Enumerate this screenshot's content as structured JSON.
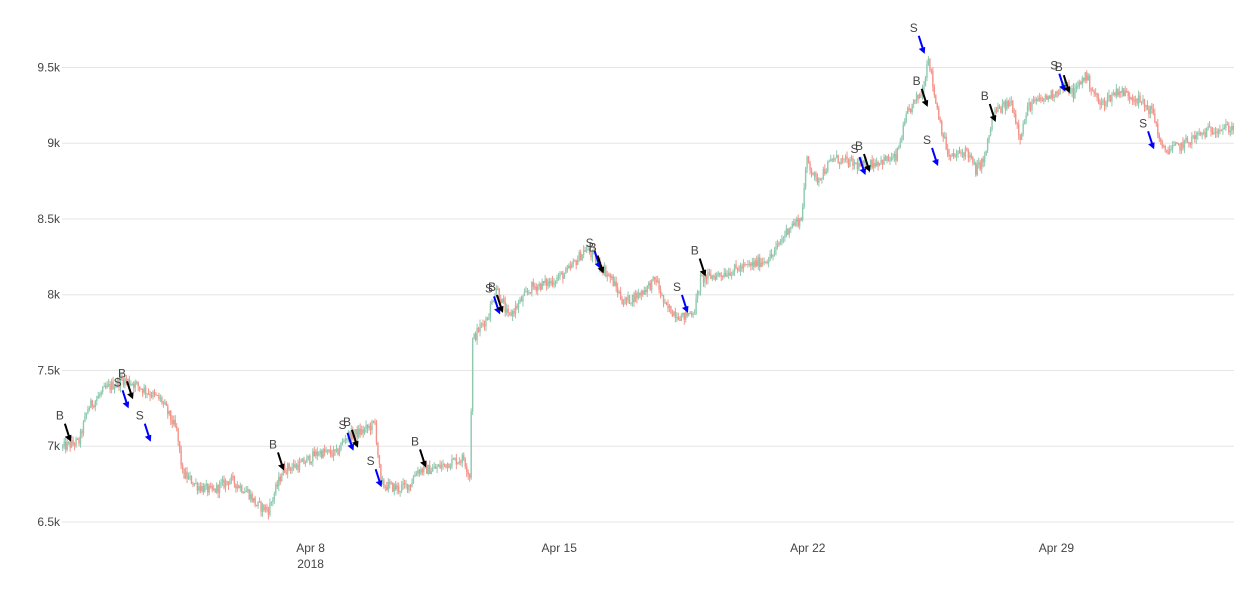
{
  "chart_data": {
    "type": "candlestick",
    "x_axis": {
      "range": [
        "2018-04-01",
        "2018-05-04"
      ],
      "ticks": [
        {
          "date": "2018-04-08",
          "label": "Apr 8",
          "sublabel": "2018"
        },
        {
          "date": "2018-04-15",
          "label": "Apr 15"
        },
        {
          "date": "2018-04-22",
          "label": "Apr 22"
        },
        {
          "date": "2018-04-29",
          "label": "Apr 29"
        }
      ]
    },
    "y_axis": {
      "range": [
        6500,
        9800
      ],
      "ticks": [
        {
          "value": 6500,
          "label": "6.5k"
        },
        {
          "value": 7000,
          "label": "7k"
        },
        {
          "value": 7500,
          "label": "7.5k"
        },
        {
          "value": 8000,
          "label": "8k"
        },
        {
          "value": 8500,
          "label": "8.5k"
        },
        {
          "value": 9000,
          "label": "9k"
        },
        {
          "value": 9500,
          "label": "9.5k"
        }
      ]
    },
    "grid": true,
    "colors": {
      "increasing": "#8fcab0",
      "decreasing": "#f3948a",
      "buy": "#000000",
      "sell": "#0000ff",
      "grid": "#e6e6e6",
      "tick_text": "#444444"
    },
    "price_path": [
      [
        "2018-04-01 00:00",
        6990
      ],
      [
        "2018-04-01 12:00",
        7030
      ],
      [
        "2018-04-01 18:00",
        7250
      ],
      [
        "2018-04-02 06:00",
        7380
      ],
      [
        "2018-04-02 18:00",
        7440
      ],
      [
        "2018-04-03 00:00",
        7420
      ],
      [
        "2018-04-03 12:00",
        7350
      ],
      [
        "2018-04-03 20:00",
        7300
      ],
      [
        "2018-04-04 06:00",
        7100
      ],
      [
        "2018-04-04 10:00",
        6820
      ],
      [
        "2018-04-04 20:00",
        6740
      ],
      [
        "2018-04-05 06:00",
        6700
      ],
      [
        "2018-04-05 18:00",
        6780
      ],
      [
        "2018-04-06 06:00",
        6700
      ],
      [
        "2018-04-06 12:00",
        6610
      ],
      [
        "2018-04-06 20:00",
        6580
      ],
      [
        "2018-04-07 06:00",
        6850
      ],
      [
        "2018-04-07 18:00",
        6880
      ],
      [
        "2018-04-08 06:00",
        6960
      ],
      [
        "2018-04-08 18:00",
        6950
      ],
      [
        "2018-04-09 00:00",
        7060
      ],
      [
        "2018-04-09 12:00",
        7100
      ],
      [
        "2018-04-09 20:00",
        7150
      ],
      [
        "2018-04-10 00:00",
        6750
      ],
      [
        "2018-04-10 12:00",
        6720
      ],
      [
        "2018-04-10 20:00",
        6750
      ],
      [
        "2018-04-11 00:00",
        6840
      ],
      [
        "2018-04-11 12:00",
        6850
      ],
      [
        "2018-04-12 00:00",
        6900
      ],
      [
        "2018-04-12 08:00",
        6920
      ],
      [
        "2018-04-12 12:00",
        6800
      ],
      [
        "2018-04-12 14:00",
        7700
      ],
      [
        "2018-04-12 20:00",
        7800
      ],
      [
        "2018-04-13 00:00",
        7850
      ],
      [
        "2018-04-13 06:00",
        8050
      ],
      [
        "2018-04-13 14:00",
        7850
      ],
      [
        "2018-04-13 22:00",
        7950
      ],
      [
        "2018-04-14 06:00",
        8050
      ],
      [
        "2018-04-14 18:00",
        8080
      ],
      [
        "2018-04-15 06:00",
        8150
      ],
      [
        "2018-04-15 18:00",
        8300
      ],
      [
        "2018-04-16 00:00",
        8250
      ],
      [
        "2018-04-16 12:00",
        8100
      ],
      [
        "2018-04-16 20:00",
        7950
      ],
      [
        "2018-04-17 06:00",
        8000
      ],
      [
        "2018-04-17 18:00",
        8100
      ],
      [
        "2018-04-18 00:00",
        7920
      ],
      [
        "2018-04-18 12:00",
        7850
      ],
      [
        "2018-04-18 20:00",
        7900
      ],
      [
        "2018-04-19 00:00",
        8100
      ],
      [
        "2018-04-19 18:00",
        8150
      ],
      [
        "2018-04-20 12:00",
        8200
      ],
      [
        "2018-04-21 00:00",
        8250
      ],
      [
        "2018-04-21 12:00",
        8450
      ],
      [
        "2018-04-21 20:00",
        8500
      ],
      [
        "2018-04-22 00:00",
        8900
      ],
      [
        "2018-04-22 06:00",
        8750
      ],
      [
        "2018-04-22 18:00",
        8900
      ],
      [
        "2018-04-23 12:00",
        8850
      ],
      [
        "2018-04-24 00:00",
        8880
      ],
      [
        "2018-04-24 12:00",
        8900
      ],
      [
        "2018-04-24 20:00",
        9200
      ],
      [
        "2018-04-25 06:00",
        9350
      ],
      [
        "2018-04-25 10:00",
        9580
      ],
      [
        "2018-04-25 14:00",
        9320
      ],
      [
        "2018-04-25 20:00",
        9050
      ],
      [
        "2018-04-26 00:00",
        8900
      ],
      [
        "2018-04-26 12:00",
        8950
      ],
      [
        "2018-04-26 18:00",
        8820
      ],
      [
        "2018-04-27 00:00",
        8900
      ],
      [
        "2018-04-27 06:00",
        9200
      ],
      [
        "2018-04-27 18:00",
        9270
      ],
      [
        "2018-04-28 00:00",
        9050
      ],
      [
        "2018-04-28 06:00",
        9250
      ],
      [
        "2018-04-28 18:00",
        9300
      ],
      [
        "2018-04-29 06:00",
        9380
      ],
      [
        "2018-04-29 12:00",
        9330
      ],
      [
        "2018-04-29 20:00",
        9450
      ],
      [
        "2018-04-30 06:00",
        9250
      ],
      [
        "2018-04-30 18:00",
        9350
      ],
      [
        "2018-05-01 06:00",
        9300
      ],
      [
        "2018-05-01 18:00",
        9200
      ],
      [
        "2018-05-02 00:00",
        8950
      ],
      [
        "2018-05-02 12:00",
        8980
      ],
      [
        "2018-05-03 00:00",
        9050
      ],
      [
        "2018-05-03 12:00",
        9100
      ],
      [
        "2018-05-04 00:00",
        9100
      ]
    ],
    "trade_markers": [
      {
        "label": "B",
        "side": "buy",
        "date": "2018-04-01 06:00",
        "price": 7030
      },
      {
        "label": "S",
        "side": "sell",
        "date": "2018-04-02 21:00",
        "price": 7250
      },
      {
        "label": "B",
        "side": "buy",
        "date": "2018-04-03 00:00",
        "price": 7310
      },
      {
        "label": "S",
        "side": "sell",
        "date": "2018-04-03 12:00",
        "price": 7030
      },
      {
        "label": "B",
        "side": "buy",
        "date": "2018-04-07 06:00",
        "price": 6840
      },
      {
        "label": "S",
        "side": "sell",
        "date": "2018-04-09 05:00",
        "price": 6970
      },
      {
        "label": "B",
        "side": "buy",
        "date": "2018-04-09 08:00",
        "price": 6990
      },
      {
        "label": "S",
        "side": "sell",
        "date": "2018-04-10 00:00",
        "price": 6730
      },
      {
        "label": "B",
        "side": "buy",
        "date": "2018-04-11 06:00",
        "price": 6860
      },
      {
        "label": "S",
        "side": "sell",
        "date": "2018-04-13 08:00",
        "price": 7870
      },
      {
        "label": "B",
        "side": "buy",
        "date": "2018-04-13 10:00",
        "price": 7880
      },
      {
        "label": "S",
        "side": "sell",
        "date": "2018-04-16 04:00",
        "price": 8170
      },
      {
        "label": "B",
        "side": "buy",
        "date": "2018-04-16 06:00",
        "price": 8140
      },
      {
        "label": "S",
        "side": "sell",
        "date": "2018-04-18 15:00",
        "price": 7880
      },
      {
        "label": "B",
        "side": "buy",
        "date": "2018-04-19 03:00",
        "price": 8120
      },
      {
        "label": "S",
        "side": "sell",
        "date": "2018-04-23 15:00",
        "price": 8790
      },
      {
        "label": "B",
        "side": "buy",
        "date": "2018-04-23 18:00",
        "price": 8810
      },
      {
        "label": "S",
        "side": "sell",
        "date": "2018-04-25 07:00",
        "price": 9590
      },
      {
        "label": "B",
        "side": "buy",
        "date": "2018-04-25 09:00",
        "price": 9240
      },
      {
        "label": "S",
        "side": "sell",
        "date": "2018-04-25 16:00",
        "price": 8850
      },
      {
        "label": "B",
        "side": "buy",
        "date": "2018-04-27 07:00",
        "price": 9140
      },
      {
        "label": "S",
        "side": "sell",
        "date": "2018-04-29 06:00",
        "price": 9340
      },
      {
        "label": "B",
        "side": "buy",
        "date": "2018-04-29 09:00",
        "price": 9330
      },
      {
        "label": "S",
        "side": "sell",
        "date": "2018-05-01 18:00",
        "price": 8960
      }
    ]
  }
}
